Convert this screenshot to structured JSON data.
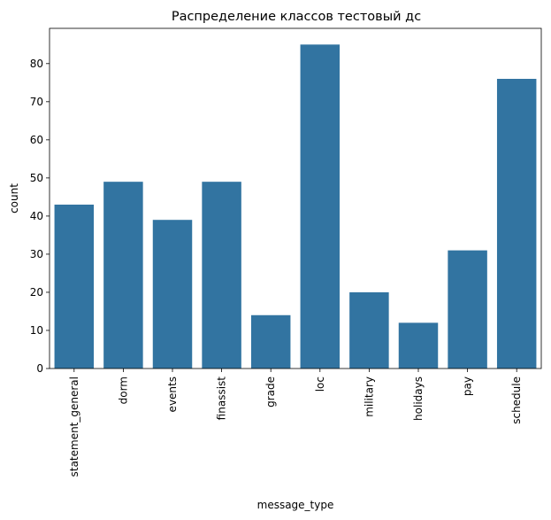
{
  "chart_data": {
    "type": "bar",
    "title": "Распределение классов тестовый дс",
    "xlabel": "message_type",
    "ylabel": "count",
    "categories": [
      "statement_general",
      "dorm",
      "events",
      "finassist",
      "grade",
      "loc",
      "military",
      "holidays",
      "pay",
      "schedule"
    ],
    "values": [
      43,
      49,
      39,
      49,
      14,
      85,
      20,
      12,
      31,
      76
    ],
    "ylim": [
      0,
      89.25
    ],
    "yticks": [
      0,
      10,
      20,
      30,
      40,
      50,
      60,
      70,
      80
    ],
    "grid": false,
    "legend": "none",
    "bar_color": "#3274a1"
  }
}
